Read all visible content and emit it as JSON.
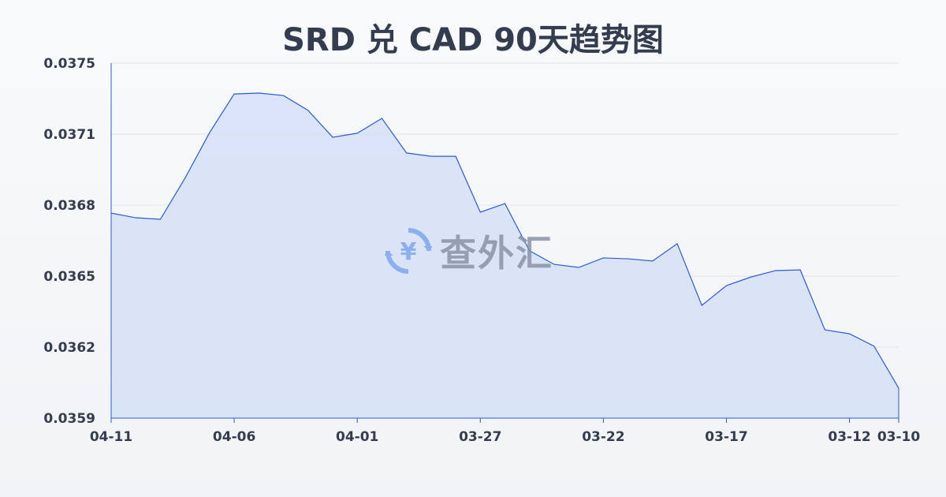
{
  "chart_data": {
    "type": "area",
    "title": "SRD 兑 CAD 90天趋势图",
    "xlabel": "",
    "ylabel": "",
    "ylim": [
      0.0359,
      0.0375
    ],
    "y_ticks": [
      "0.0375",
      "0.0371",
      "0.0368",
      "0.0365",
      "0.0362",
      "0.0359"
    ],
    "x_ticks": [
      "04-11",
      "04-06",
      "04-01",
      "03-27",
      "03-22",
      "03-17",
      "03-12",
      "03-10"
    ],
    "grid": true,
    "colors": {
      "line": "#2a5bd7",
      "fill": "#d6e1f7"
    },
    "x": [
      "04-11",
      "04-10",
      "04-09",
      "04-08",
      "04-07",
      "04-06",
      "04-05",
      "04-04",
      "04-03",
      "04-02",
      "04-01",
      "03-31",
      "03-30",
      "03-29",
      "03-28",
      "03-27",
      "03-26",
      "03-25",
      "03-24",
      "03-23",
      "03-22",
      "03-21",
      "03-20",
      "03-19",
      "03-18",
      "03-17",
      "03-16",
      "03-15",
      "03-14",
      "03-13",
      "03-12",
      "03-11",
      "03-10"
    ],
    "values": [
      0.036824,
      0.036803,
      0.036796,
      0.036981,
      0.037187,
      0.037361,
      0.037365,
      0.037354,
      0.037287,
      0.037166,
      0.037184,
      0.037251,
      0.037095,
      0.03708,
      0.03708,
      0.036828,
      0.036867,
      0.036654,
      0.036593,
      0.036579,
      0.036622,
      0.036618,
      0.036608,
      0.036686,
      0.036408,
      0.036497,
      0.036536,
      0.036565,
      0.036568,
      0.036298,
      0.03628,
      0.036224,
      0.036035
    ]
  },
  "watermark": {
    "text": "查外汇",
    "icon": "yuan-exchange-icon"
  }
}
